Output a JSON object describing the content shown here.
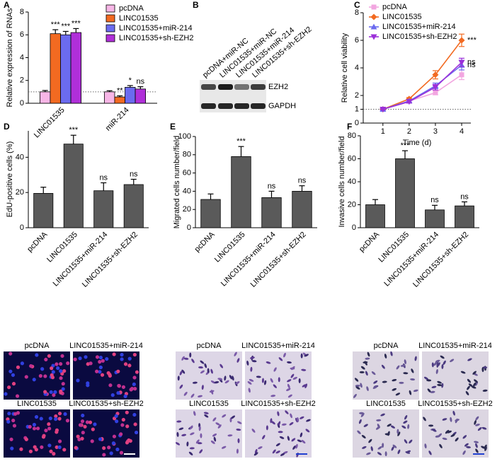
{
  "chart_data": [
    {
      "type": "bar",
      "label": "A",
      "ylabel": "Relative expression of RNAs",
      "categories": [
        "LINC01535",
        "miR-214"
      ],
      "series": [
        {
          "name": "pcDNA",
          "color": "#f7b6e6",
          "values": [
            1,
            1
          ],
          "errors": [
            0.12,
            0.1
          ],
          "annotations": [
            null,
            null
          ]
        },
        {
          "name": "LINC01535",
          "color": "#f26a21",
          "values": [
            6.1,
            0.55
          ],
          "errors": [
            0.35,
            0.1
          ],
          "annotations": [
            "***",
            "**"
          ]
        },
        {
          "name": "LINC01535+miR-214",
          "color": "#6b6bef",
          "values": [
            6.0,
            1.4
          ],
          "errors": [
            0.3,
            0.15
          ],
          "annotations": [
            "***",
            "*"
          ]
        },
        {
          "name": "LINC01535+sh-EZH2",
          "color": "#b02fd9",
          "values": [
            6.2,
            1.25
          ],
          "errors": [
            0.35,
            0.2
          ],
          "annotations": [
            "***",
            "ns"
          ]
        }
      ],
      "ylim": [
        0,
        8
      ],
      "yticks": [
        0,
        2,
        4,
        6,
        8
      ],
      "reference_line": 1,
      "legend": "upper-right"
    },
    {
      "type": "line",
      "label": "C",
      "ylabel": "Relative cell viability",
      "xlabel": "Time (d)",
      "x": [
        1,
        2,
        3,
        4
      ],
      "series": [
        {
          "name": "pcDNA",
          "color": "#f2a6e0",
          "marker": "square",
          "values": [
            1,
            1.6,
            2.2,
            3.5
          ],
          "errors": [
            0.05,
            0.1,
            0.15,
            0.35
          ],
          "annotation": null
        },
        {
          "name": "LINC01535",
          "color": "#f26a21",
          "marker": "diamond",
          "values": [
            1,
            1.75,
            3.5,
            6.0
          ],
          "errors": [
            0.05,
            0.1,
            0.3,
            0.45
          ],
          "annotation": "***"
        },
        {
          "name": "LINC01535+miR-214",
          "color": "#6b6bef",
          "marker": "triangle",
          "values": [
            1,
            1.6,
            2.7,
            4.2
          ],
          "errors": [
            0.05,
            0.1,
            0.2,
            0.35
          ],
          "annotation": "ns"
        },
        {
          "name": "LINC01535+sh-EZH2",
          "color": "#9b30d9",
          "marker": "triangle-down",
          "values": [
            1,
            1.55,
            2.6,
            4.4
          ],
          "errors": [
            0.05,
            0.1,
            0.2,
            0.3
          ],
          "annotation": "ns"
        }
      ],
      "xlim": [
        0.25,
        4.35
      ],
      "xticks": [
        1,
        2,
        3,
        4
      ],
      "ylim": [
        0,
        8
      ],
      "yticks": [
        0,
        1,
        2,
        4,
        6,
        8
      ],
      "reference_line": 1,
      "legend": "upper-left"
    },
    {
      "type": "bar",
      "label": "D",
      "ylabel": "EdU-positive cells (%)",
      "categories": [
        "pcDNA",
        "LINC01535",
        "LINC01535+miR-214",
        "LINC01535+sh-EZH2"
      ],
      "values": [
        19.5,
        47.5,
        21,
        24.5
      ],
      "errors": [
        3.5,
        5,
        4.5,
        3
      ],
      "annotations": [
        null,
        "***",
        "ns",
        "ns"
      ],
      "color": "#5a5a5a",
      "ylim": [
        0,
        55
      ],
      "yticks": [
        0,
        20,
        40
      ]
    },
    {
      "type": "bar",
      "label": "E",
      "ylabel": "Migrated cells number/field",
      "categories": [
        "pcDNA",
        "LINC01535",
        "LINC01535+miR-214",
        "LINC01535+sh-EZH2"
      ],
      "values": [
        31,
        78,
        33,
        40
      ],
      "errors": [
        6,
        11,
        7,
        6
      ],
      "annotations": [
        null,
        "***",
        "ns",
        "ns"
      ],
      "color": "#5a5a5a",
      "ylim": [
        0,
        100
      ],
      "yticks": [
        0,
        20,
        40,
        60,
        80,
        100
      ]
    },
    {
      "type": "bar",
      "label": "F",
      "ylabel": "Invasive cells number/field",
      "categories": [
        "pcDNA",
        "LINC01535",
        "LINC01535+miR-214",
        "LINC01535+sh-EZH2"
      ],
      "values": [
        20,
        60,
        15.5,
        19
      ],
      "errors": [
        4.5,
        7,
        4,
        3.5
      ],
      "annotations": [
        null,
        "***",
        "ns",
        "ns"
      ],
      "color": "#5a5a5a",
      "ylim": [
        0,
        80
      ],
      "yticks": [
        0,
        20,
        40,
        60,
        80
      ]
    }
  ],
  "blot": {
    "label": "B",
    "lanes": [
      "pcDNA+miR-NC",
      "LINC01535+miR-NC",
      "LINC01535+miR-214",
      "LINC01535+sh-EZH2"
    ],
    "bands": [
      "EZH2",
      "GAPDH"
    ]
  },
  "images": [
    {
      "labels": [
        "pcDNA",
        "LINC01535+miR-214",
        "LINC01535",
        "LINC01535+sh-EZH2"
      ]
    },
    {
      "labels": [
        "pcDNA",
        "LINC01535+miR-214",
        "LINC01535",
        "LINC01535+sh-EZH2"
      ]
    },
    {
      "labels": [
        "pcDNA",
        "LINC01535+miR-214",
        "LINC01535",
        "LINC01535+sh-EZH2"
      ]
    }
  ]
}
